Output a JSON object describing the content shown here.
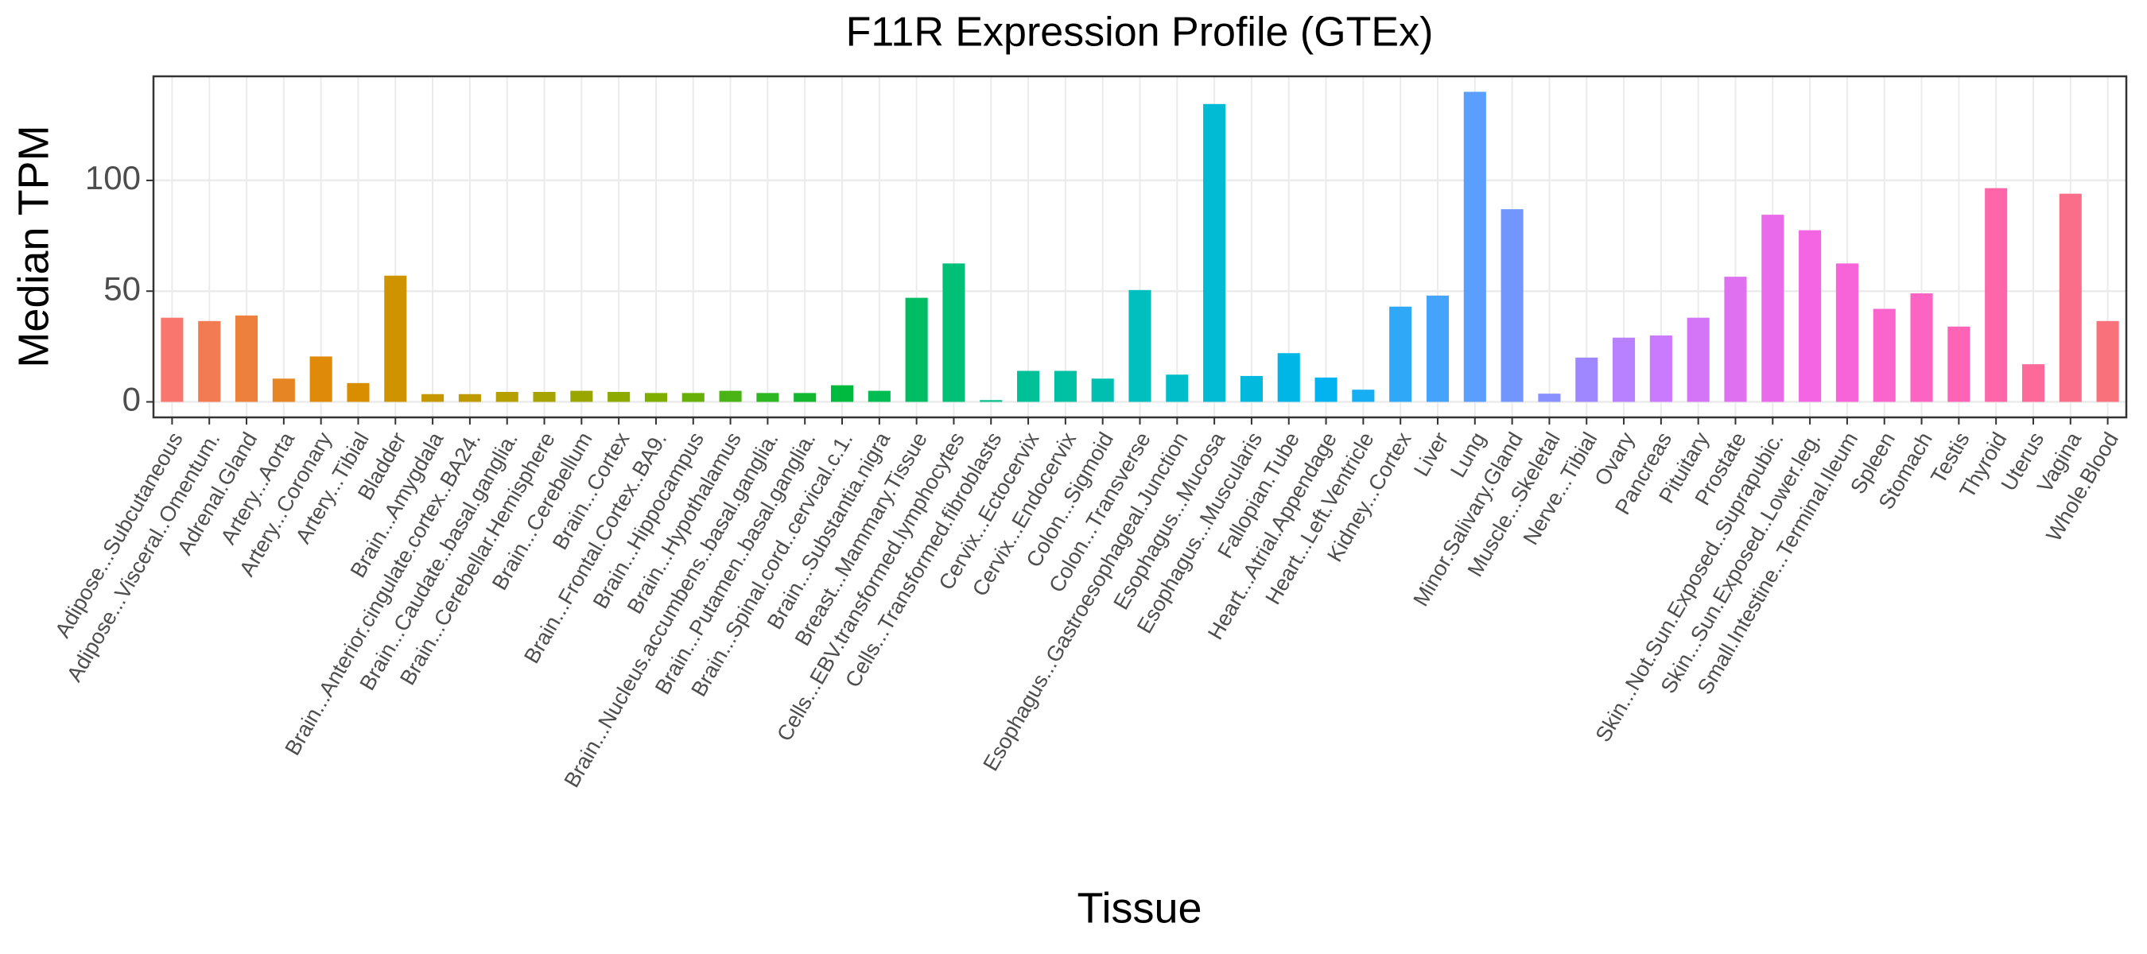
{
  "chart_data": {
    "type": "bar",
    "title": "F11R Expression Profile (GTEx)",
    "x_label": "Tissue",
    "y_label": "Median TPM",
    "categories": [
      "Adipose...Subcutaneous",
      "Adipose...Visceral..Omentum.",
      "Adrenal.Gland",
      "Artery...Aorta",
      "Artery...Coronary",
      "Artery...Tibial",
      "Bladder",
      "Brain...Amygdala",
      "Brain...Anterior.cingulate.cortex..BA24.",
      "Brain...Caudate..basal.ganglia.",
      "Brain...Cerebellar.Hemisphere",
      "Brain...Cerebellum",
      "Brain...Cortex",
      "Brain...Frontal.Cortex..BA9.",
      "Brain...Hippocampus",
      "Brain...Hypothalamus",
      "Brain...Nucleus.accumbens..basal.ganglia.",
      "Brain...Putamen..basal.ganglia.",
      "Brain...Spinal.cord..cervical.c.1.",
      "Brain...Substantia.nigra",
      "Breast...Mammary.Tissue",
      "Cells...EBV.transformed.lymphocytes",
      "Cells...Transformed.fibroblasts",
      "Cervix...Ectocervix",
      "Cervix...Endocervix",
      "Colon...Sigmoid",
      "Colon...Transverse",
      "Esophagus...Gastroesophageal.Junction",
      "Esophagus...Mucosa",
      "Esophagus...Muscularis",
      "Fallopian.Tube",
      "Heart...Atrial.Appendage",
      "Heart...Left.Ventricle",
      "Kidney...Cortex",
      "Liver",
      "Lung",
      "Minor.Salivary.Gland",
      "Muscle...Skeletal",
      "Nerve...Tibial",
      "Ovary",
      "Pancreas",
      "Pituitary",
      "Prostate",
      "Skin...Not.Sun.Exposed..Suprapubic.",
      "Skin...Sun.Exposed..Lower.leg.",
      "Small.Intestine...Terminal.Ileum",
      "Spleen",
      "Stomach",
      "Testis",
      "Thyroid",
      "Uterus",
      "Vagina",
      "Whole.Blood"
    ],
    "values": [
      38,
      36.5,
      39,
      10.5,
      20.5,
      8.5,
      57,
      3.5,
      3.5,
      4.5,
      4.5,
      5,
      4.5,
      4,
      4,
      5,
      4,
      4,
      7.5,
      5,
      47,
      62.5,
      0.8,
      14,
      14,
      10.5,
      50.5,
      12.3,
      134.5,
      11.7,
      22,
      11,
      5.5,
      43,
      48,
      140,
      87,
      3.7,
      20,
      29,
      30,
      38,
      56.5,
      84.5,
      77.5,
      62.5,
      42,
      49,
      34,
      96.5,
      17,
      94,
      36.5
    ],
    "colors": [
      "#F8766D",
      "#F27B54",
      "#EC803C",
      "#E68523",
      "#E08A0A",
      "#D98E00",
      "#D09300",
      "#C79700",
      "#BE9B00",
      "#B5A000",
      "#A7A300",
      "#9AA600",
      "#8CAA00",
      "#7FAD00",
      "#67B00A",
      "#4AB316",
      "#2EB623",
      "#13B830",
      "#00BA3F",
      "#00BC52",
      "#00BD64",
      "#00BF77",
      "#00C08A",
      "#00C097",
      "#00C0A4",
      "#00BFB1",
      "#00BFBE",
      "#00BEC9",
      "#00BBD3",
      "#00B9DD",
      "#00B6E7",
      "#03B3F0",
      "#18AEF4",
      "#2FA8F7",
      "#45A3FB",
      "#5A9EFE",
      "#7197FF",
      "#8990FF",
      "#9F88FF",
      "#B781FF",
      "#CA7AFD",
      "#D475F7",
      "#DF70F0",
      "#E96AEA",
      "#F465E4",
      "#F764D9",
      "#F964CD",
      "#FB64C2",
      "#FE64B6",
      "#FE66A9",
      "#FD6A9A",
      "#FB6E8A",
      "#F9727B"
    ],
    "ylim": [
      -7,
      147
    ],
    "yticks": [
      0,
      50,
      100
    ],
    "grid": true
  }
}
